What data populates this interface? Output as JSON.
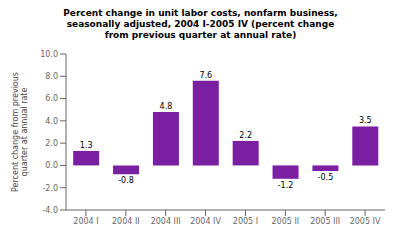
{
  "chart_data": {
    "type": "bar",
    "title": "Percent change in unit labor costs, nonfarm business,\nseasonally adjusted, 2004 I-2005 IV (percent change\nfrom previous quarter at annual rate)",
    "ylabel": "Percent change from previous\nquarter at annual rate",
    "categories": [
      "2004 I",
      "2004 II",
      "2004 III",
      "2004 IV",
      "2005 I",
      "2005 II",
      "2005 III",
      "2005 IV"
    ],
    "values": [
      1.3,
      -0.8,
      4.8,
      7.6,
      2.2,
      -1.2,
      -0.5,
      3.5
    ],
    "color": "#7B1FA2",
    "ylim": [
      -4.0,
      10.0
    ],
    "yticks": [
      {
        "value": -4.0,
        "label": "-4.0"
      },
      {
        "value": -2.0,
        "label": "-2.0"
      },
      {
        "value": 0.0,
        "label": "0.0"
      },
      {
        "value": 2.0,
        "label": "2.0"
      },
      {
        "value": 4.0,
        "label": "4.0"
      },
      {
        "value": 6.0,
        "label": "6.0"
      },
      {
        "value": 8.0,
        "label": "8.0"
      },
      {
        "value": 10.0,
        "label": "10.0"
      }
    ],
    "grid": false,
    "data_labels": true
  }
}
